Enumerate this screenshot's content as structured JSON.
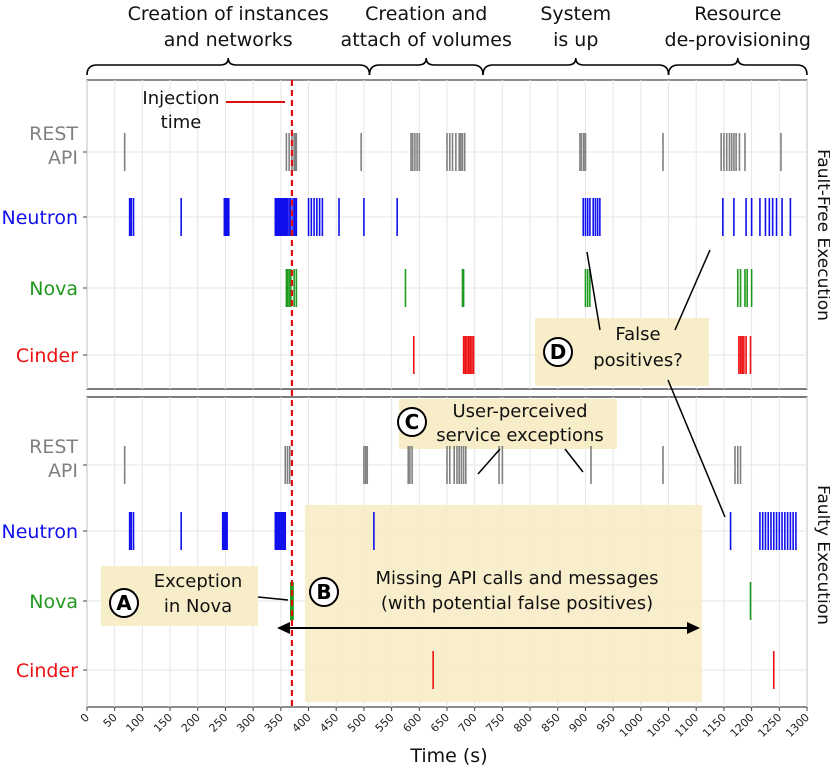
{
  "chart_data": {
    "type": "event-raster",
    "x_axis": {
      "label": "Time (s)",
      "range": [
        0,
        1300
      ],
      "ticks": [
        0,
        50,
        100,
        150,
        200,
        250,
        300,
        350,
        400,
        450,
        500,
        550,
        600,
        650,
        700,
        750,
        800,
        850,
        900,
        950,
        1000,
        1050,
        1100,
        1150,
        1200,
        1250,
        1300
      ]
    },
    "phases": [
      {
        "lines": [
          "Creation of instances",
          "and networks"
        ],
        "start": 0,
        "end": 510
      },
      {
        "lines": [
          "Creation and",
          "attach of volumes"
        ],
        "start": 510,
        "end": 715
      },
      {
        "lines": [
          "System",
          "is up"
        ],
        "start": 715,
        "end": 1050
      },
      {
        "lines": [
          "Resource",
          "de-provisioning"
        ],
        "start": 1050,
        "end": 1300
      }
    ],
    "injection_time": 370,
    "injection_label": [
      "Injection",
      "time"
    ],
    "panels": [
      {
        "name": "Fault-Free Execution",
        "rows": [
          {
            "label": [
              "REST",
              "API"
            ],
            "color": "#808080",
            "events": [
              68,
              360,
              365,
              370,
              374,
              376,
              378,
              495,
              585,
              588,
              592,
              596,
              600,
              650,
              655,
              660,
              666,
              672,
              675,
              678,
              682,
              890,
              893,
              897,
              900,
              1040,
              1145,
              1150,
              1155,
              1160,
              1164,
              1168,
              1172,
              1178,
              1188,
              1253
            ]
          },
          {
            "label": [
              "Neutron"
            ],
            "color": "#1010ee",
            "events": [
              77,
              80,
              84,
              170,
              248,
              250,
              252,
              254,
              256,
              340,
              342,
              344,
              346,
              348,
              350,
              352,
              354,
              356,
              358,
              360,
              362,
              365,
              368,
              372,
              375,
              378,
              400,
              405,
              410,
              415,
              420,
              425,
              455,
              500,
              560,
              896,
              900,
              904,
              908,
              914,
              918,
              922,
              926,
              1148,
              1168,
              1190,
              1200,
              1215,
              1225,
              1232,
              1238,
              1245,
              1255,
              1270
            ]
          },
          {
            "label": [
              "Nova"
            ],
            "color": "#1e9a1e",
            "events": [
              360,
              362,
              365,
              368,
              374,
              378,
              575,
              678,
              680,
              900,
              904,
              908,
              1175,
              1180,
              1188,
              1192,
              1200
            ]
          },
          {
            "label": [
              "Cinder"
            ],
            "color": "#ee1111",
            "events": [
              590,
              680,
              683,
              686,
              689,
              692,
              695,
              698,
              1177,
              1180,
              1183,
              1186,
              1190,
              1198
            ]
          }
        ]
      },
      {
        "name": "Faulty Execution",
        "rows": [
          {
            "label": [
              "REST",
              "API"
            ],
            "color": "#808080",
            "events": [
              68,
              358,
              362,
              366,
              500,
              503,
              506,
              580,
              583,
              587,
              650,
              655,
              663,
              668,
              672,
              676,
              680,
              684,
              744,
              750,
              910,
              1040,
              1170,
              1175,
              1180
            ]
          },
          {
            "label": [
              "Neutron"
            ],
            "color": "#1010ee",
            "events": [
              77,
              80,
              84,
              170,
              245,
              247,
              249,
              251,
              253,
              340,
              342,
              344,
              346,
              348,
              350,
              352,
              354,
              356,
              358,
              518,
              1162,
              1215,
              1220,
              1225,
              1230,
              1235,
              1240,
              1245,
              1250,
              1255,
              1260,
              1265,
              1270,
              1275,
              1280
            ]
          },
          {
            "label": [
              "Nova"
            ],
            "color": "#1e9a1e",
            "events": [
              368,
              370,
              372,
              1198
            ]
          },
          {
            "label": [
              "Cinder"
            ],
            "color": "#ee1111",
            "events": [
              625,
              1240
            ]
          }
        ]
      }
    ],
    "annotations": {
      "A": {
        "letter": "A",
        "text": [
          "Exception",
          "in Nova"
        ]
      },
      "B": {
        "letter": "B",
        "text": [
          "Missing API calls and messages",
          "(with potential false positives)"
        ]
      },
      "C": {
        "letter": "C",
        "text": [
          "User-perceived",
          "service exceptions"
        ]
      },
      "D": {
        "letter": "D",
        "text": [
          "False",
          "positives?"
        ]
      }
    }
  }
}
